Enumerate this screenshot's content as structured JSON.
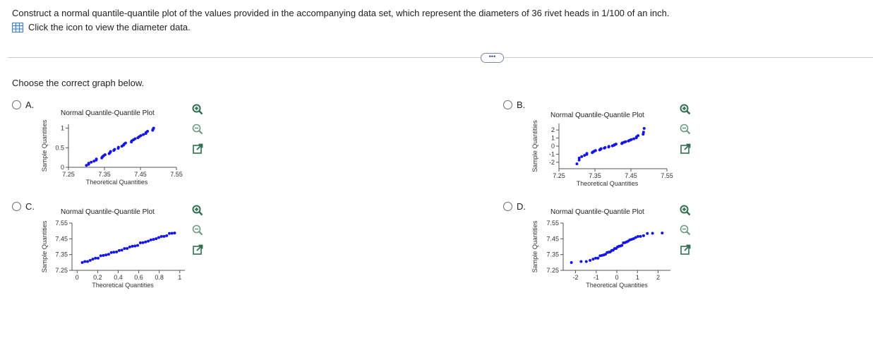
{
  "question": {
    "text": "Construct a normal quantile-quantile plot of the values provided in the accompanying data set, which represent the diameters of 36 rivet heads in 1/100 of an inch.",
    "data_link_label": "Click the icon to view the diameter data.",
    "more_label": "•••"
  },
  "prompt": "Choose the correct graph below.",
  "colors": {
    "points": "#1515e6",
    "axis": "#555555",
    "accent": "#2f6e4f"
  },
  "options": {
    "A": {
      "letter": "A.",
      "title": "Normal Quantile-Quantile Plot",
      "xlabel": "Theoretical Quantities",
      "ylabel": "Sample Quantities",
      "xticks": [
        "7.25",
        "7.35",
        "7.45",
        "7.55"
      ],
      "yticks": [
        "0",
        "0.5",
        "1"
      ]
    },
    "B": {
      "letter": "B.",
      "title": "Normal Quantile-Quantile Plot",
      "xlabel": "Theoretical Quantities",
      "ylabel": "Sample Quantities",
      "xticks": [
        "7.25",
        "7.35",
        "7.45",
        "7.55"
      ],
      "yticks": [
        "-2",
        "-1",
        "0",
        "1",
        "2"
      ]
    },
    "C": {
      "letter": "C.",
      "title": "Normal Quantile-Quantile Plot",
      "xlabel": "Theoretical Quantities",
      "ylabel": "Sample Quantities",
      "xticks": [
        "0",
        "0.2",
        "0.4",
        "0.6",
        "0.8",
        "1"
      ],
      "yticks": [
        "7.25",
        "7.35",
        "7.45",
        "7.55"
      ]
    },
    "D": {
      "letter": "D.",
      "title": "Normal Quantile-Quantile Plot",
      "xlabel": "Theoretical Quantities",
      "ylabel": "Sample Quantities",
      "xticks": [
        "-2",
        "-1",
        "0",
        "1",
        "2"
      ],
      "yticks": [
        "7.25",
        "7.35",
        "7.45",
        "7.55"
      ]
    }
  },
  "tool_icons": [
    "zoom-in-icon",
    "zoom-out-icon",
    "open-external-icon"
  ]
}
